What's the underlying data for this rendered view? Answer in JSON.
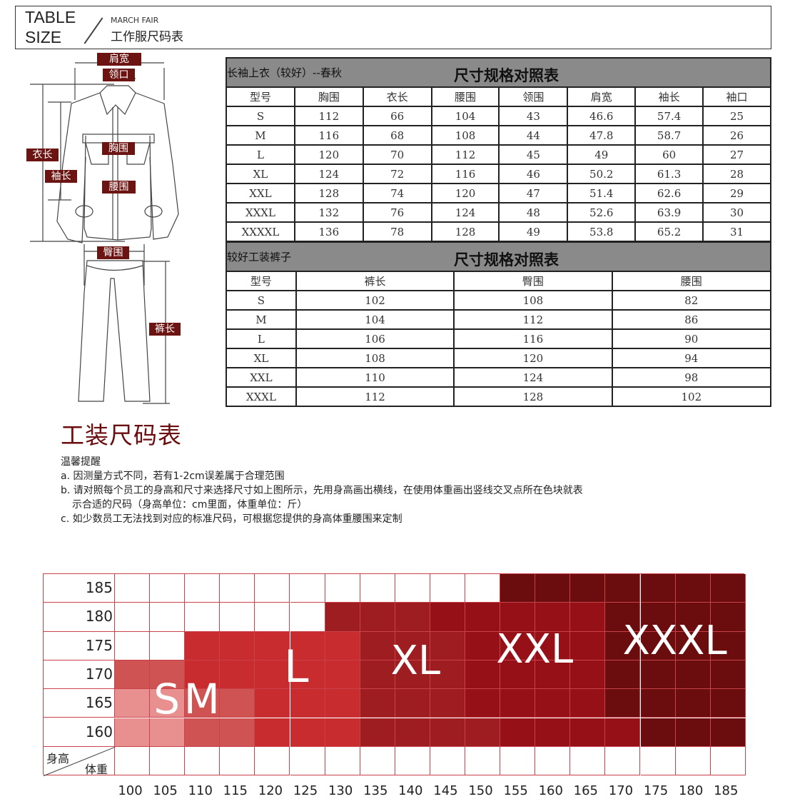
{
  "header": {
    "table": "TABLE",
    "size": "SIZE",
    "brand": "MARCH FAIR",
    "title": "工作服尺码表"
  },
  "diagram_labels": {
    "shoulder": "肩宽",
    "collar": "领口",
    "chest": "胸围",
    "length": "衣长",
    "sleeve": "袖长",
    "waist": "腰围",
    "hip": "臀围",
    "pants_length": "裤长"
  },
  "jacket_table": {
    "subtitle": "长袖上衣（较好）--春秋",
    "title": "尺寸规格对照表",
    "headers": [
      "型号",
      "胸围",
      "衣长",
      "腰围",
      "领围",
      "肩宽",
      "袖长",
      "袖口"
    ],
    "rows": [
      [
        "S",
        "112",
        "66",
        "104",
        "43",
        "46.6",
        "57.4",
        "25"
      ],
      [
        "M",
        "116",
        "68",
        "108",
        "44",
        "47.8",
        "58.7",
        "26"
      ],
      [
        "L",
        "120",
        "70",
        "112",
        "45",
        "49",
        "60",
        "27"
      ],
      [
        "XL",
        "124",
        "72",
        "116",
        "46",
        "50.2",
        "61.3",
        "28"
      ],
      [
        "XXL",
        "128",
        "74",
        "120",
        "47",
        "51.4",
        "62.6",
        "29"
      ],
      [
        "XXXL",
        "132",
        "76",
        "124",
        "48",
        "52.6",
        "63.9",
        "30"
      ],
      [
        "XXXXL",
        "136",
        "78",
        "128",
        "49",
        "53.8",
        "65.2",
        "31"
      ]
    ]
  },
  "pants_table": {
    "subtitle": "较好工装裤子",
    "title": "尺寸规格对照表",
    "headers": [
      "型号",
      "裤长",
      "臀围",
      "腰围"
    ],
    "rows": [
      [
        "S",
        "102",
        "108",
        "82"
      ],
      [
        "M",
        "104",
        "112",
        "86"
      ],
      [
        "L",
        "106",
        "116",
        "90"
      ],
      [
        "XL",
        "108",
        "120",
        "94"
      ],
      [
        "XXL",
        "110",
        "124",
        "98"
      ],
      [
        "XXXL",
        "112",
        "128",
        "102"
      ]
    ]
  },
  "notes": {
    "heading": "工装尺码表",
    "reminder": "温馨提醒",
    "a": "a. 因测量方式不同，若有1-2cm误差属于合理范围",
    "b1": "b. 请对照每个员工的身高和尺寸来选择尺寸如上图所示，先用身高画出横线，在使用体重画出竖线交叉点所在色块就表",
    "b2": "示合适的尺码（身高单位：cm里面，体重单位：斤）",
    "c": "c. 如少数员工无法找到对应的标准尺码，可根据您提供的身高体重腰围来定制"
  },
  "size_grid": {
    "corner_height": "身高",
    "corner_weight": "体重",
    "heights": [
      "185",
      "180",
      "175",
      "170",
      "165",
      "160"
    ],
    "weights": [
      "100",
      "105",
      "110",
      "115",
      "120",
      "125",
      "130",
      "135",
      "140",
      "145",
      "150",
      "155",
      "160",
      "165",
      "170",
      "175",
      "180",
      "185"
    ],
    "map": [
      "-----------XXXXXXX",
      "------LLLKKKKKXXXX",
      "--MMMMMLLLKKKKXXXX",
      "SSMMMMMLLLKKKKXXXX",
      "ssSSMMMLLLKKKKXXXX",
      "ssSSMMMLLLLKKKKXXX"
    ],
    "sizes": [
      "S",
      "M",
      "L",
      "XL",
      "XXL",
      "XXXL"
    ],
    "colors": {
      "S": "#e8908f",
      "M": "#d05354",
      "L": "#c92c2f",
      "XL": "#9d1d20",
      "XXL": "#961017",
      "XXXL": "#6b0d0f"
    }
  }
}
